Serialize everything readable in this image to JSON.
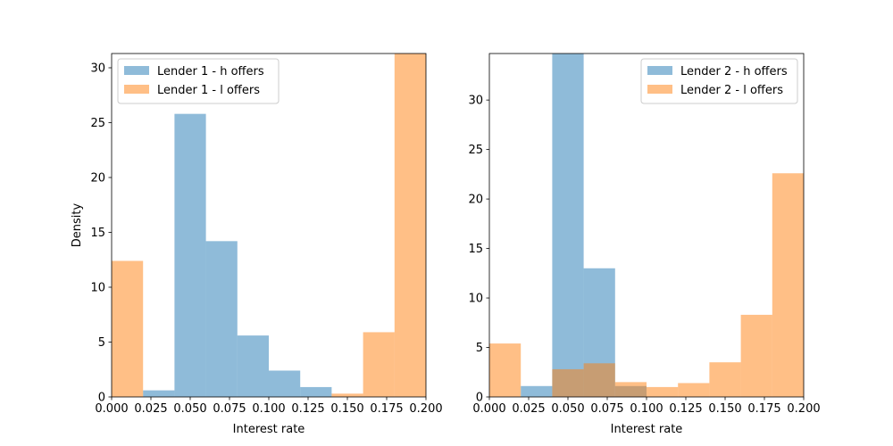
{
  "chart_data": [
    {
      "type": "histogram",
      "xlabel": "Interest rate",
      "ylabel": "Density",
      "xlim": [
        0,
        0.2
      ],
      "ylim": [
        0,
        31.3
      ],
      "xticks": [
        "0.000",
        "0.025",
        "0.050",
        "0.075",
        "0.100",
        "0.125",
        "0.150",
        "0.175",
        "0.200"
      ],
      "yticks": [
        0,
        5,
        10,
        15,
        20,
        25,
        30
      ],
      "legend_position": "top-left",
      "grid": false,
      "series": [
        {
          "name": "Lender 1 - h offers",
          "color": "#1f77b4",
          "opacity": 0.5,
          "bins": [
            {
              "x0": 0.02,
              "x1": 0.04,
              "y": 0.6
            },
            {
              "x0": 0.04,
              "x1": 0.06,
              "y": 25.8
            },
            {
              "x0": 0.06,
              "x1": 0.08,
              "y": 14.2
            },
            {
              "x0": 0.08,
              "x1": 0.1,
              "y": 5.6
            },
            {
              "x0": 0.1,
              "x1": 0.12,
              "y": 2.4
            },
            {
              "x0": 0.12,
              "x1": 0.14,
              "y": 0.9
            }
          ]
        },
        {
          "name": "Lender 1 - l offers",
          "color": "#ff7f0e",
          "opacity": 0.5,
          "bins": [
            {
              "x0": 0.0,
              "x1": 0.02,
              "y": 12.4
            },
            {
              "x0": 0.14,
              "x1": 0.16,
              "y": 0.3
            },
            {
              "x0": 0.16,
              "x1": 0.18,
              "y": 5.9
            },
            {
              "x0": 0.18,
              "x1": 0.2,
              "y": 31.3
            }
          ]
        }
      ]
    },
    {
      "type": "histogram",
      "xlabel": "Interest rate",
      "ylabel": "",
      "xlim": [
        0,
        0.2
      ],
      "ylim": [
        0,
        34.7
      ],
      "xticks": [
        "0.000",
        "0.025",
        "0.050",
        "0.075",
        "0.100",
        "0.125",
        "0.150",
        "0.175",
        "0.200"
      ],
      "yticks": [
        0,
        5,
        10,
        15,
        20,
        25,
        30
      ],
      "legend_position": "top-right",
      "grid": false,
      "series": [
        {
          "name": "Lender 2 - h offers",
          "color": "#1f77b4",
          "opacity": 0.5,
          "bins": [
            {
              "x0": 0.02,
              "x1": 0.04,
              "y": 1.1
            },
            {
              "x0": 0.04,
              "x1": 0.06,
              "y": 34.7
            },
            {
              "x0": 0.06,
              "x1": 0.08,
              "y": 13.0
            },
            {
              "x0": 0.08,
              "x1": 0.1,
              "y": 1.1
            }
          ]
        },
        {
          "name": "Lender 2 - l offers",
          "color": "#ff7f0e",
          "opacity": 0.5,
          "bins": [
            {
              "x0": 0.0,
              "x1": 0.02,
              "y": 5.4
            },
            {
              "x0": 0.04,
              "x1": 0.06,
              "y": 2.8
            },
            {
              "x0": 0.06,
              "x1": 0.08,
              "y": 3.4
            },
            {
              "x0": 0.08,
              "x1": 0.1,
              "y": 1.5
            },
            {
              "x0": 0.1,
              "x1": 0.12,
              "y": 1.0
            },
            {
              "x0": 0.12,
              "x1": 0.14,
              "y": 1.4
            },
            {
              "x0": 0.14,
              "x1": 0.16,
              "y": 3.5
            },
            {
              "x0": 0.16,
              "x1": 0.18,
              "y": 8.3
            },
            {
              "x0": 0.18,
              "x1": 0.2,
              "y": 22.6
            }
          ]
        }
      ]
    }
  ]
}
